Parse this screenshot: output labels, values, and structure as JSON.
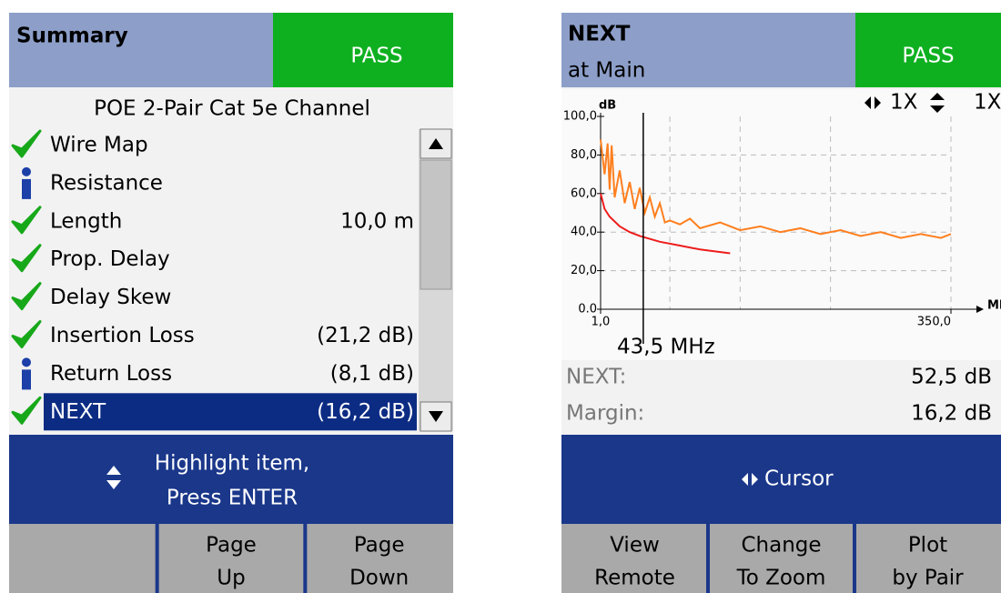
{
  "left_screen": {
    "header": {
      "title": "Summary",
      "status": "PASS"
    },
    "subtitle": "POE 2-Pair Cat 5e Channel",
    "rows": [
      {
        "status": "check",
        "label": "Wire Map",
        "value": null
      },
      {
        "status": "info",
        "label": "Resistance",
        "value": null
      },
      {
        "status": "check",
        "label": "Length",
        "value": "10,0 m"
      },
      {
        "status": "check",
        "label": "Prop. Delay",
        "value": null
      },
      {
        "status": "check",
        "label": "Delay Skew",
        "value": null
      },
      {
        "status": "check",
        "label": "Insertion Loss",
        "value": "(21,2 dB)"
      },
      {
        "status": "info",
        "label": "Return Loss",
        "value": "(8,1 dB)"
      },
      {
        "status": "check",
        "label": "NEXT",
        "value": "(16,2 dB)",
        "selected": true
      }
    ],
    "hint": [
      "Highlight item,",
      "Press ENTER"
    ],
    "softkeys": [
      [
        "",
        ""
      ],
      [
        "Page",
        "Up"
      ],
      [
        "Page",
        "Down"
      ]
    ]
  },
  "right_screen": {
    "header": {
      "title": "NEXT",
      "subtitle": "at Main",
      "status": "PASS"
    },
    "zoom_x": "1X",
    "zoom_y": "1X",
    "plot": {
      "type": "line",
      "y_label": "dB",
      "x_label": "MHz",
      "xlim": [
        1,
        350
      ],
      "ylim": [
        0,
        100
      ],
      "xticks": [
        {
          "value": 1,
          "label": "1,0"
        },
        {
          "value": 350,
          "label": "350,0"
        }
      ],
      "yticks": [
        {
          "value": 0,
          "label": "0.0"
        },
        {
          "value": 20,
          "label": "20,0"
        },
        {
          "value": 40,
          "label": "40,0"
        },
        {
          "value": 60,
          "label": "60,0"
        },
        {
          "value": 80,
          "label": "80,0"
        },
        {
          "value": 100,
          "label": "100,0"
        }
      ],
      "grid_x": [
        70,
        140,
        230,
        350
      ],
      "cursor": {
        "value": 43.5,
        "label": "43,5 MHz"
      },
      "series": [
        {
          "name": "NEXT",
          "color": "#ff7f1e",
          "x": [
            1,
            5,
            8,
            10,
            12,
            15,
            20,
            25,
            30,
            35,
            40,
            45,
            50,
            55,
            60,
            65,
            70,
            80,
            90,
            100,
            120,
            140,
            160,
            180,
            200,
            220,
            240,
            260,
            280,
            300,
            320,
            340,
            350
          ],
          "values": [
            88,
            70,
            86,
            62,
            85,
            58,
            72,
            55,
            66,
            52,
            63,
            50,
            58,
            48,
            55,
            45,
            46,
            44,
            47,
            42,
            45,
            41,
            43,
            40,
            42,
            39,
            41,
            38,
            40,
            37,
            39,
            37,
            39
          ]
        },
        {
          "name": "Limit",
          "color": "#ee1c1c",
          "x": [
            1,
            5,
            10,
            20,
            30,
            40,
            60,
            80,
            100,
            130
          ],
          "values": [
            60,
            52,
            48,
            43,
            40,
            38,
            35,
            33,
            31,
            29
          ]
        }
      ]
    },
    "readouts": [
      {
        "label": "NEXT:",
        "value": "52,5 dB"
      },
      {
        "label": "Margin:",
        "value": "16,2 dB"
      }
    ],
    "hint": "Cursor",
    "softkeys": [
      [
        "View",
        "Remote"
      ],
      [
        "Change",
        "To Zoom"
      ],
      [
        "Plot",
        "by Pair"
      ]
    ]
  }
}
